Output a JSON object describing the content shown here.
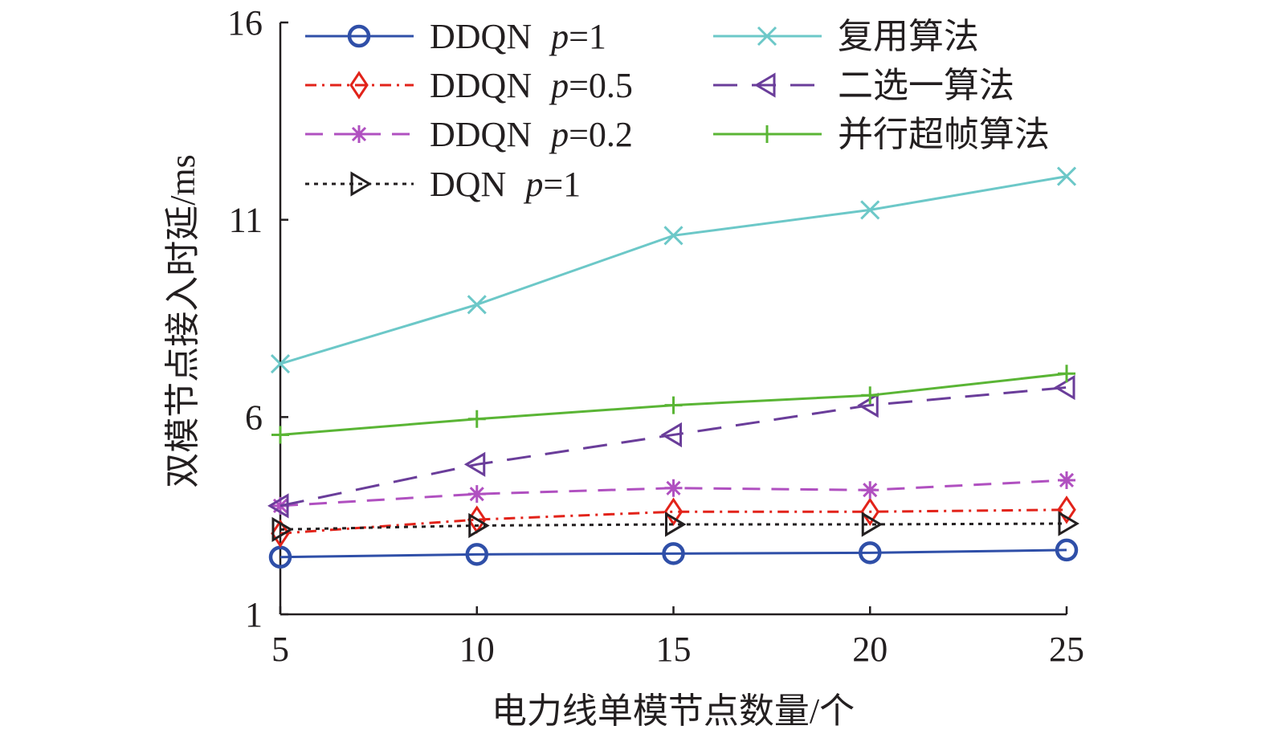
{
  "chart_data": {
    "type": "line",
    "title": "",
    "xlabel": "电力线单模节点数量/个",
    "ylabel": "双模节点接入时延/ms",
    "x": [
      5,
      10,
      15,
      20,
      25
    ],
    "xticks": [
      "5",
      "10",
      "15",
      "20",
      "25"
    ],
    "yticks": [
      "1",
      "6",
      "11",
      "16"
    ],
    "xlim": [
      5,
      25
    ],
    "ylim": [
      1,
      16
    ],
    "grid": false,
    "legend_position": "top-left",
    "series": [
      {
        "name": "DDQN",
        "param": "p",
        "param_value": "=1",
        "values": [
          2.45,
          2.52,
          2.54,
          2.56,
          2.63
        ],
        "color": "#2f4fa8",
        "dash": "",
        "marker": "circle"
      },
      {
        "name": "DDQN",
        "param": "p",
        "param_value": "=0.5",
        "values": [
          3.05,
          3.4,
          3.6,
          3.6,
          3.65
        ],
        "color": "#e2231a",
        "dash": "14,7,3,7",
        "marker": "diamond"
      },
      {
        "name": "DDQN",
        "param": "p",
        "param_value": "=0.2",
        "values": [
          3.75,
          4.05,
          4.2,
          4.15,
          4.4
        ],
        "color": "#b050c0",
        "dash": "22,14",
        "marker": "asterisk"
      },
      {
        "name": "DQN",
        "param": "p",
        "param_value": "=1",
        "values": [
          3.15,
          3.25,
          3.28,
          3.28,
          3.3
        ],
        "color": "#231f20",
        "dash": "5,6",
        "marker": "triangle-right"
      },
      {
        "name": "复用算法",
        "values": [
          7.35,
          8.85,
          10.6,
          11.25,
          12.1
        ],
        "color": "#6cc8c8",
        "dash": "",
        "marker": "x"
      },
      {
        "name": "二选一算法",
        "values": [
          3.75,
          4.8,
          5.55,
          6.3,
          6.75
        ],
        "color": "#6a3d9a",
        "dash": "30,18",
        "marker": "triangle-left"
      },
      {
        "name": "并行超帧算法",
        "values": [
          5.55,
          5.95,
          6.3,
          6.55,
          7.1
        ],
        "color": "#5ab535",
        "dash": "",
        "marker": "plus"
      }
    ]
  }
}
